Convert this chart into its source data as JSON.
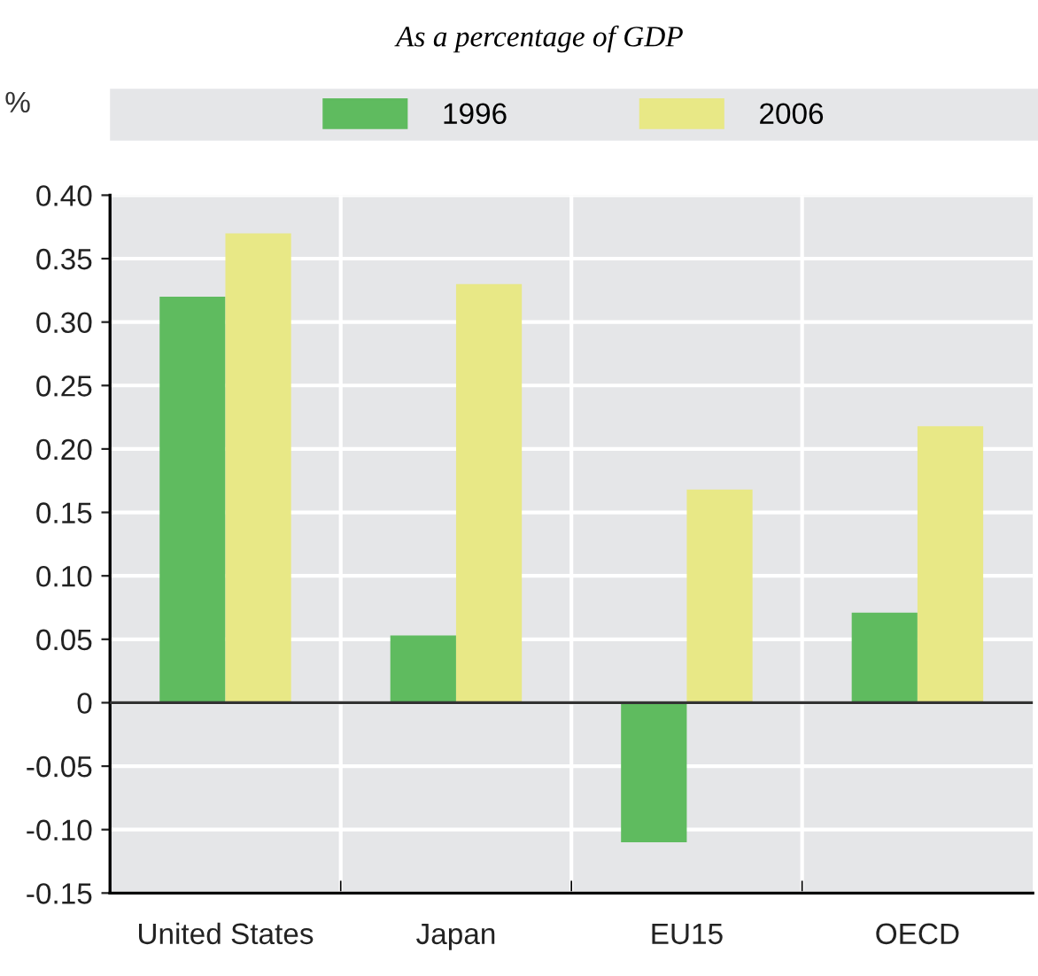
{
  "chart_data": {
    "type": "bar",
    "subtitle": "As a percentage of GDP",
    "ylabel": "%",
    "categories": [
      "United States",
      "Japan",
      "EU15",
      "OECD"
    ],
    "series": [
      {
        "name": "1996",
        "color": "#5fbb5f",
        "values": [
          0.32,
          0.053,
          -0.11,
          0.071
        ]
      },
      {
        "name": "2006",
        "color": "#e8e886",
        "values": [
          0.37,
          0.33,
          0.168,
          0.218
        ]
      }
    ],
    "ylim": [
      -0.15,
      0.4
    ],
    "yticks": [
      {
        "value": -0.15,
        "label": "-0.15"
      },
      {
        "value": -0.1,
        "label": "-0.10"
      },
      {
        "value": -0.05,
        "label": "-0.05"
      },
      0,
      {
        "value": 0.05,
        "label": "0.05"
      },
      {
        "value": 0.1,
        "label": "0.10"
      },
      {
        "value": 0.15,
        "label": "0.15"
      },
      {
        "value": 0.2,
        "label": "0.20"
      },
      {
        "value": 0.25,
        "label": "0.25"
      },
      {
        "value": 0.3,
        "label": "0.30"
      },
      {
        "value": 0.35,
        "label": "0.35"
      },
      {
        "value": 0.4,
        "label": "0.40"
      }
    ],
    "grid": true,
    "legend": "top"
  }
}
